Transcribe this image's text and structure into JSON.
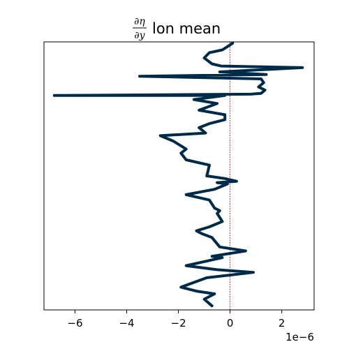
{
  "chart_data": {
    "type": "line",
    "title": {
      "fraction_numerator": "∂η",
      "fraction_denominator": "∂y",
      "text": "lon mean"
    },
    "xlabel": "",
    "ylabel": "",
    "x_offset_label": "1e−6",
    "x_scale": 1e-06,
    "xlim": [
      -7.2,
      3.25
    ],
    "ylim": [
      0,
      1
    ],
    "x_ticks": [
      -6,
      -4,
      -2,
      0,
      2
    ],
    "x_tick_labels": [
      "−6",
      "−4",
      "−2",
      "0",
      "2"
    ],
    "y_ticks_visible": false,
    "grid": false,
    "line_color": "#002b48",
    "zero_line": {
      "x": 0,
      "color": "#cc0000",
      "style": "dashed"
    },
    "series": [
      {
        "x": [
          0.1,
          -0.3,
          -0.8,
          -1.0,
          -0.7,
          -0.35,
          2.8,
          -0.4,
          1.4,
          -3.5,
          1.2,
          1.3,
          1.1,
          1.35,
          1.2,
          0.8,
          -6.8,
          -0.2,
          -1.4,
          -0.5,
          -1.2,
          -0.2,
          -0.2,
          -0.8,
          -1.2,
          -0.95,
          -2.7,
          -2.2,
          -1.7,
          -1.9,
          -1.7,
          -0.8,
          -0.9,
          -0.2,
          0.25,
          -0.5,
          -0.1,
          -0.6,
          -1.7,
          -0.8,
          -0.6,
          -0.4,
          -0.5,
          -0.3,
          -0.8,
          -1.3,
          -1.1,
          -0.7,
          -0.4,
          0.6,
          -0.7,
          -0.3,
          -1.7,
          -0.5,
          0.9,
          -0.9,
          -1.9,
          -1.3,
          -0.6,
          -1.0,
          -0.7
        ],
        "y": [
          0.995,
          0.97,
          0.96,
          0.94,
          0.918,
          0.91,
          0.904,
          0.888,
          0.878,
          0.872,
          0.862,
          0.848,
          0.832,
          0.82,
          0.808,
          0.805,
          0.8,
          0.8,
          0.785,
          0.77,
          0.745,
          0.728,
          0.71,
          0.695,
          0.68,
          0.66,
          0.65,
          0.63,
          0.6,
          0.585,
          0.56,
          0.54,
          0.5,
          0.49,
          0.48,
          0.475,
          0.47,
          0.45,
          0.43,
          0.41,
          0.38,
          0.37,
          0.36,
          0.33,
          0.31,
          0.295,
          0.285,
          0.27,
          0.235,
          0.22,
          0.2,
          0.195,
          0.165,
          0.15,
          0.14,
          0.12,
          0.085,
          0.07,
          0.06,
          0.04,
          0.015
        ]
      }
    ]
  }
}
